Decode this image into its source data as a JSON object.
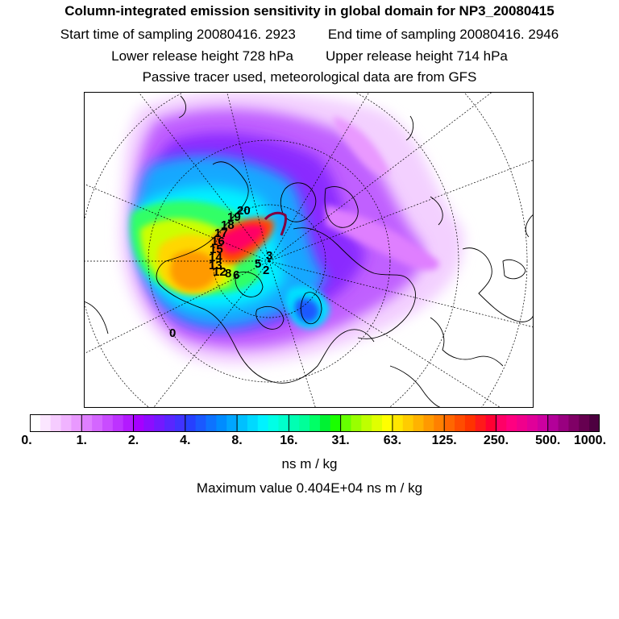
{
  "header": {
    "title": "Column-integrated emission sensitivity in global domain for NP3_20080415",
    "start_label": "Start time of sampling 20080416.  2923",
    "end_label": "End time of sampling 20080416.  2946",
    "lower_label": "Lower release height  728 hPa",
    "upper_label": "Upper release height  714 hPa",
    "tracer_label": "Passive tracer used, meteorological data are from GFS"
  },
  "map": {
    "projection": "north-polar-stereographic",
    "track_labels": [
      "20",
      "19",
      "18",
      "17",
      "16",
      "15",
      "14",
      "13",
      "12",
      "8",
      "6",
      "5",
      "3",
      "2",
      "0"
    ]
  },
  "colorbar": {
    "tick_labels": [
      "0.",
      "1.",
      "2.",
      "4.",
      "8.",
      "16.",
      "31.",
      "63.",
      "125.",
      "250.",
      "500.",
      "1000."
    ],
    "colors": [
      "#ffffff",
      "#fbe6ff",
      "#f6ccff",
      "#f0b3ff",
      "#e999ff",
      "#df7fff",
      "#d466ff",
      "#c94cff",
      "#bd33ff",
      "#b31aff",
      "#a600ff",
      "#8c0dff",
      "#7319ff",
      "#5926ff",
      "#4033ff",
      "#2640ff",
      "#1a59ff",
      "#0d73ff",
      "#008cff",
      "#00a6ff",
      "#00c0ff",
      "#00d9ff",
      "#00f2ff",
      "#00ffe6",
      "#00ffcc",
      "#00ffb3",
      "#00ff99",
      "#00ff66",
      "#00f233",
      "#1aff00",
      "#66ff00",
      "#99ff00",
      "#bfff00",
      "#e0ff00",
      "#ffff00",
      "#ffe600",
      "#ffcc00",
      "#ffb300",
      "#ff9900",
      "#ff8000",
      "#ff6600",
      "#ff4c00",
      "#ff3300",
      "#ff1a1a",
      "#ff0033",
      "#ff0066",
      "#ff0080",
      "#f0008c",
      "#e00099",
      "#cc00a0",
      "#b30099",
      "#990080",
      "#800066",
      "#660050",
      "#4d0040"
    ],
    "units": "ns m / kg",
    "max_value_label": "Maximum value  0.404E+04 ns m / kg"
  }
}
